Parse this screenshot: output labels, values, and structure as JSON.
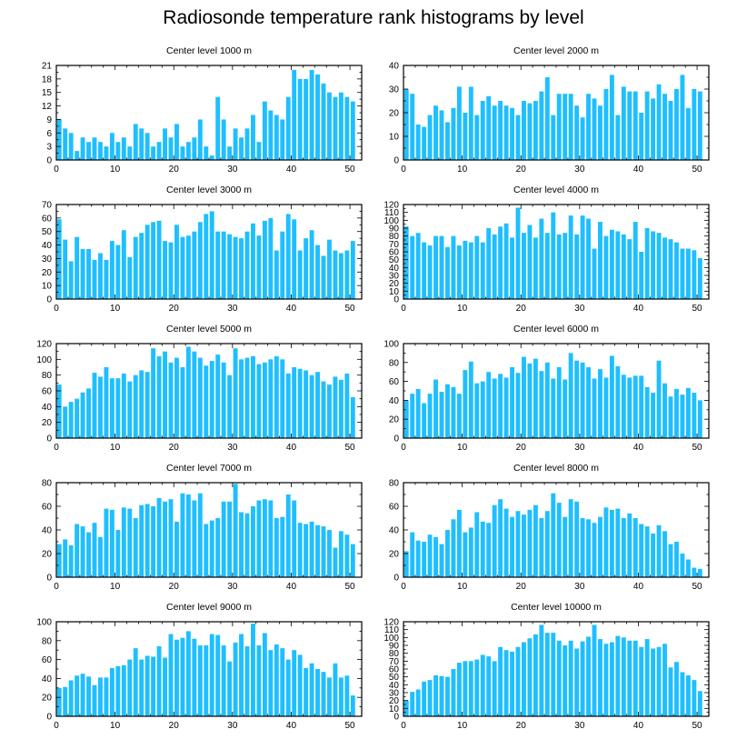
{
  "main_title": "Radiosonde temperature rank histograms by level",
  "colors": {
    "bar": "#1fbfff",
    "axis": "#000000",
    "background": "#ffffff"
  },
  "chart_data": [
    {
      "type": "bar",
      "title": "Center level 1000 m",
      "xlim": [
        0,
        52
      ],
      "ylim": [
        0,
        21
      ],
      "xticks": [
        0,
        10,
        20,
        30,
        40,
        50
      ],
      "yticks": [
        0,
        3,
        6,
        9,
        12,
        15,
        18,
        21
      ],
      "values": [
        9,
        7,
        6,
        2,
        5,
        4,
        5,
        4,
        3,
        6,
        4,
        5,
        3,
        8,
        7,
        6,
        3,
        4,
        7,
        5,
        8,
        3,
        4,
        5,
        9,
        3,
        1,
        14,
        9,
        3,
        7,
        5,
        7,
        10,
        4,
        13,
        11,
        10,
        9,
        14,
        20,
        18,
        18,
        20,
        19,
        17,
        15,
        14,
        15,
        14,
        13
      ]
    },
    {
      "type": "bar",
      "title": "Center level 2000 m",
      "xlim": [
        0,
        52
      ],
      "ylim": [
        0,
        40
      ],
      "xticks": [
        0,
        10,
        20,
        30,
        40,
        50
      ],
      "yticks": [
        0,
        10,
        20,
        30,
        40
      ],
      "values": [
        30,
        28,
        15,
        14,
        19,
        23,
        21,
        16,
        22,
        31,
        20,
        31,
        19,
        25,
        27,
        23,
        25,
        23,
        22,
        19,
        25,
        24,
        25,
        29,
        35,
        19,
        28,
        28,
        28,
        23,
        18,
        28,
        26,
        23,
        30,
        36,
        19,
        31,
        29,
        29,
        20,
        29,
        26,
        32,
        28,
        25,
        30,
        36,
        22,
        30,
        29
      ]
    },
    {
      "type": "bar",
      "title": "Center level 3000 m",
      "xlim": [
        0,
        52
      ],
      "ylim": [
        0,
        70
      ],
      "xticks": [
        0,
        10,
        20,
        30,
        40,
        50
      ],
      "yticks": [
        0,
        10,
        20,
        30,
        40,
        50,
        60,
        70
      ],
      "values": [
        59,
        44,
        28,
        46,
        37,
        37,
        29,
        34,
        29,
        43,
        40,
        51,
        31,
        46,
        49,
        55,
        57,
        58,
        43,
        42,
        55,
        46,
        47,
        50,
        57,
        63,
        65,
        50,
        50,
        48,
        46,
        45,
        50,
        56,
        47,
        58,
        60,
        36,
        50,
        63,
        59,
        36,
        45,
        51,
        40,
        32,
        44,
        36,
        34,
        36,
        43
      ]
    },
    {
      "type": "bar",
      "title": "Center level 4000 m",
      "xlim": [
        0,
        52
      ],
      "ylim": [
        0,
        120
      ],
      "xticks": [
        0,
        10,
        20,
        30,
        40,
        50
      ],
      "yticks": [
        0,
        10,
        20,
        30,
        40,
        50,
        60,
        70,
        80,
        90,
        100,
        110,
        120
      ],
      "values": [
        92,
        80,
        84,
        72,
        68,
        80,
        80,
        66,
        80,
        68,
        74,
        72,
        80,
        72,
        90,
        82,
        92,
        96,
        78,
        116,
        84,
        94,
        78,
        102,
        84,
        110,
        82,
        84,
        106,
        82,
        106,
        102,
        64,
        98,
        80,
        88,
        86,
        82,
        76,
        98,
        60,
        90,
        86,
        84,
        78,
        76,
        72,
        64,
        64,
        62,
        52
      ]
    },
    {
      "type": "bar",
      "title": "Center level 5000 m",
      "xlim": [
        0,
        52
      ],
      "ylim": [
        0,
        120
      ],
      "xticks": [
        0,
        10,
        20,
        30,
        40,
        50
      ],
      "yticks": [
        0,
        20,
        40,
        60,
        80,
        100,
        120
      ],
      "values": [
        68,
        40,
        46,
        50,
        58,
        63,
        83,
        78,
        90,
        76,
        76,
        82,
        72,
        80,
        86,
        84,
        114,
        104,
        110,
        96,
        102,
        90,
        116,
        110,
        102,
        92,
        98,
        106,
        96,
        80,
        114,
        100,
        102,
        104,
        94,
        96,
        100,
        104,
        100,
        82,
        90,
        88,
        86,
        80,
        84,
        72,
        68,
        78,
        74,
        82,
        52
      ]
    },
    {
      "type": "bar",
      "title": "Center level 6000 m",
      "xlim": [
        0,
        52
      ],
      "ylim": [
        0,
        100
      ],
      "xticks": [
        0,
        10,
        20,
        30,
        40,
        50
      ],
      "yticks": [
        0,
        20,
        40,
        60,
        80,
        100
      ],
      "values": [
        40,
        47,
        52,
        37,
        47,
        62,
        49,
        57,
        54,
        47,
        72,
        81,
        58,
        60,
        70,
        63,
        68,
        64,
        75,
        69,
        86,
        79,
        84,
        71,
        80,
        63,
        75,
        62,
        90,
        82,
        80,
        75,
        63,
        73,
        64,
        87,
        76,
        67,
        64,
        66,
        66,
        54,
        48,
        82,
        58,
        44,
        52,
        46,
        53,
        48,
        40
      ]
    },
    {
      "type": "bar",
      "title": "Center level 7000 m",
      "xlim": [
        0,
        52
      ],
      "ylim": [
        0,
        80
      ],
      "xticks": [
        0,
        10,
        20,
        30,
        40,
        50
      ],
      "yticks": [
        0,
        20,
        40,
        60,
        80
      ],
      "values": [
        28,
        32,
        27,
        45,
        43,
        38,
        46,
        34,
        58,
        57,
        40,
        59,
        58,
        50,
        61,
        62,
        60,
        67,
        64,
        66,
        47,
        71,
        70,
        65,
        71,
        45,
        48,
        50,
        64,
        64,
        79,
        55,
        54,
        60,
        65,
        66,
        65,
        50,
        51,
        70,
        65,
        46,
        45,
        47,
        44,
        43,
        40,
        25,
        39,
        36,
        28
      ]
    },
    {
      "type": "bar",
      "title": "Center level 8000 m",
      "xlim": [
        0,
        52
      ],
      "ylim": [
        0,
        80
      ],
      "xticks": [
        0,
        10,
        20,
        30,
        40,
        50
      ],
      "yticks": [
        0,
        20,
        40,
        60,
        80
      ],
      "values": [
        22,
        38,
        31,
        30,
        36,
        34,
        28,
        40,
        49,
        57,
        38,
        42,
        55,
        47,
        46,
        61,
        66,
        58,
        51,
        56,
        53,
        57,
        61,
        50,
        56,
        71,
        63,
        51,
        66,
        64,
        50,
        49,
        46,
        51,
        59,
        57,
        58,
        50,
        54,
        50,
        45,
        43,
        37,
        44,
        39,
        28,
        30,
        20,
        15,
        8,
        7
      ]
    },
    {
      "type": "bar",
      "title": "Center level 9000 m",
      "xlim": [
        0,
        52
      ],
      "ylim": [
        0,
        100
      ],
      "xticks": [
        0,
        10,
        20,
        30,
        40,
        50
      ],
      "yticks": [
        0,
        20,
        40,
        60,
        80,
        100
      ],
      "values": [
        30,
        31,
        38,
        43,
        45,
        42,
        33,
        41,
        41,
        51,
        53,
        54,
        60,
        72,
        60,
        64,
        63,
        74,
        62,
        87,
        81,
        83,
        90,
        82,
        75,
        75,
        87,
        86,
        75,
        58,
        78,
        87,
        74,
        98,
        75,
        88,
        70,
        76,
        72,
        60,
        70,
        65,
        51,
        56,
        50,
        47,
        41,
        56,
        41,
        43,
        22
      ]
    },
    {
      "type": "bar",
      "title": "Center level 10000 m",
      "xlim": [
        0,
        52
      ],
      "ylim": [
        0,
        120
      ],
      "xticks": [
        0,
        10,
        20,
        30,
        40,
        50
      ],
      "yticks": [
        0,
        10,
        20,
        30,
        40,
        50,
        60,
        70,
        80,
        90,
        100,
        110,
        120
      ],
      "values": [
        20,
        31,
        34,
        44,
        46,
        52,
        51,
        50,
        60,
        68,
        70,
        70,
        72,
        78,
        76,
        70,
        88,
        84,
        82,
        88,
        94,
        99,
        104,
        116,
        106,
        106,
        96,
        90,
        96,
        86,
        95,
        101,
        116,
        98,
        92,
        94,
        102,
        100,
        96,
        96,
        88,
        98,
        86,
        88,
        92,
        62,
        69,
        56,
        52,
        46,
        32
      ]
    }
  ]
}
